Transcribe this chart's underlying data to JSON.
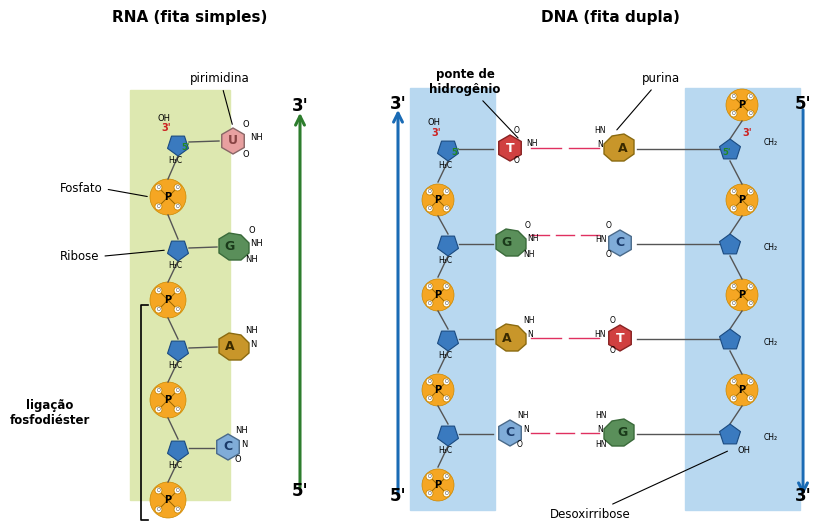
{
  "title_left": "RNA (fita simples)",
  "title_right": "DNA (fita dupla)",
  "bg_color": "#ffffff",
  "rna_bg": "#dde8b0",
  "dna_bg": "#b8d8f0",
  "phosphate_color": "#f5a623",
  "ribose_color": "#3a7abf",
  "U_color": "#e8a0a0",
  "G_color": "#5a8f5a",
  "A_color": "#c8962a",
  "C_color": "#80acd8",
  "T_color": "#d04040",
  "arrow_green": "#2d7d2d",
  "arrow_blue": "#1a6bb5",
  "label_fosfato": "Fosfato",
  "label_ribose": "Ribose",
  "label_pirimidina": "pirimidina",
  "label_ponte": "ponte de\nhidrogênio",
  "label_purina": "purina",
  "label_ligacao": "ligação\nfosfodiéster",
  "label_desox": "Desoxirribose"
}
